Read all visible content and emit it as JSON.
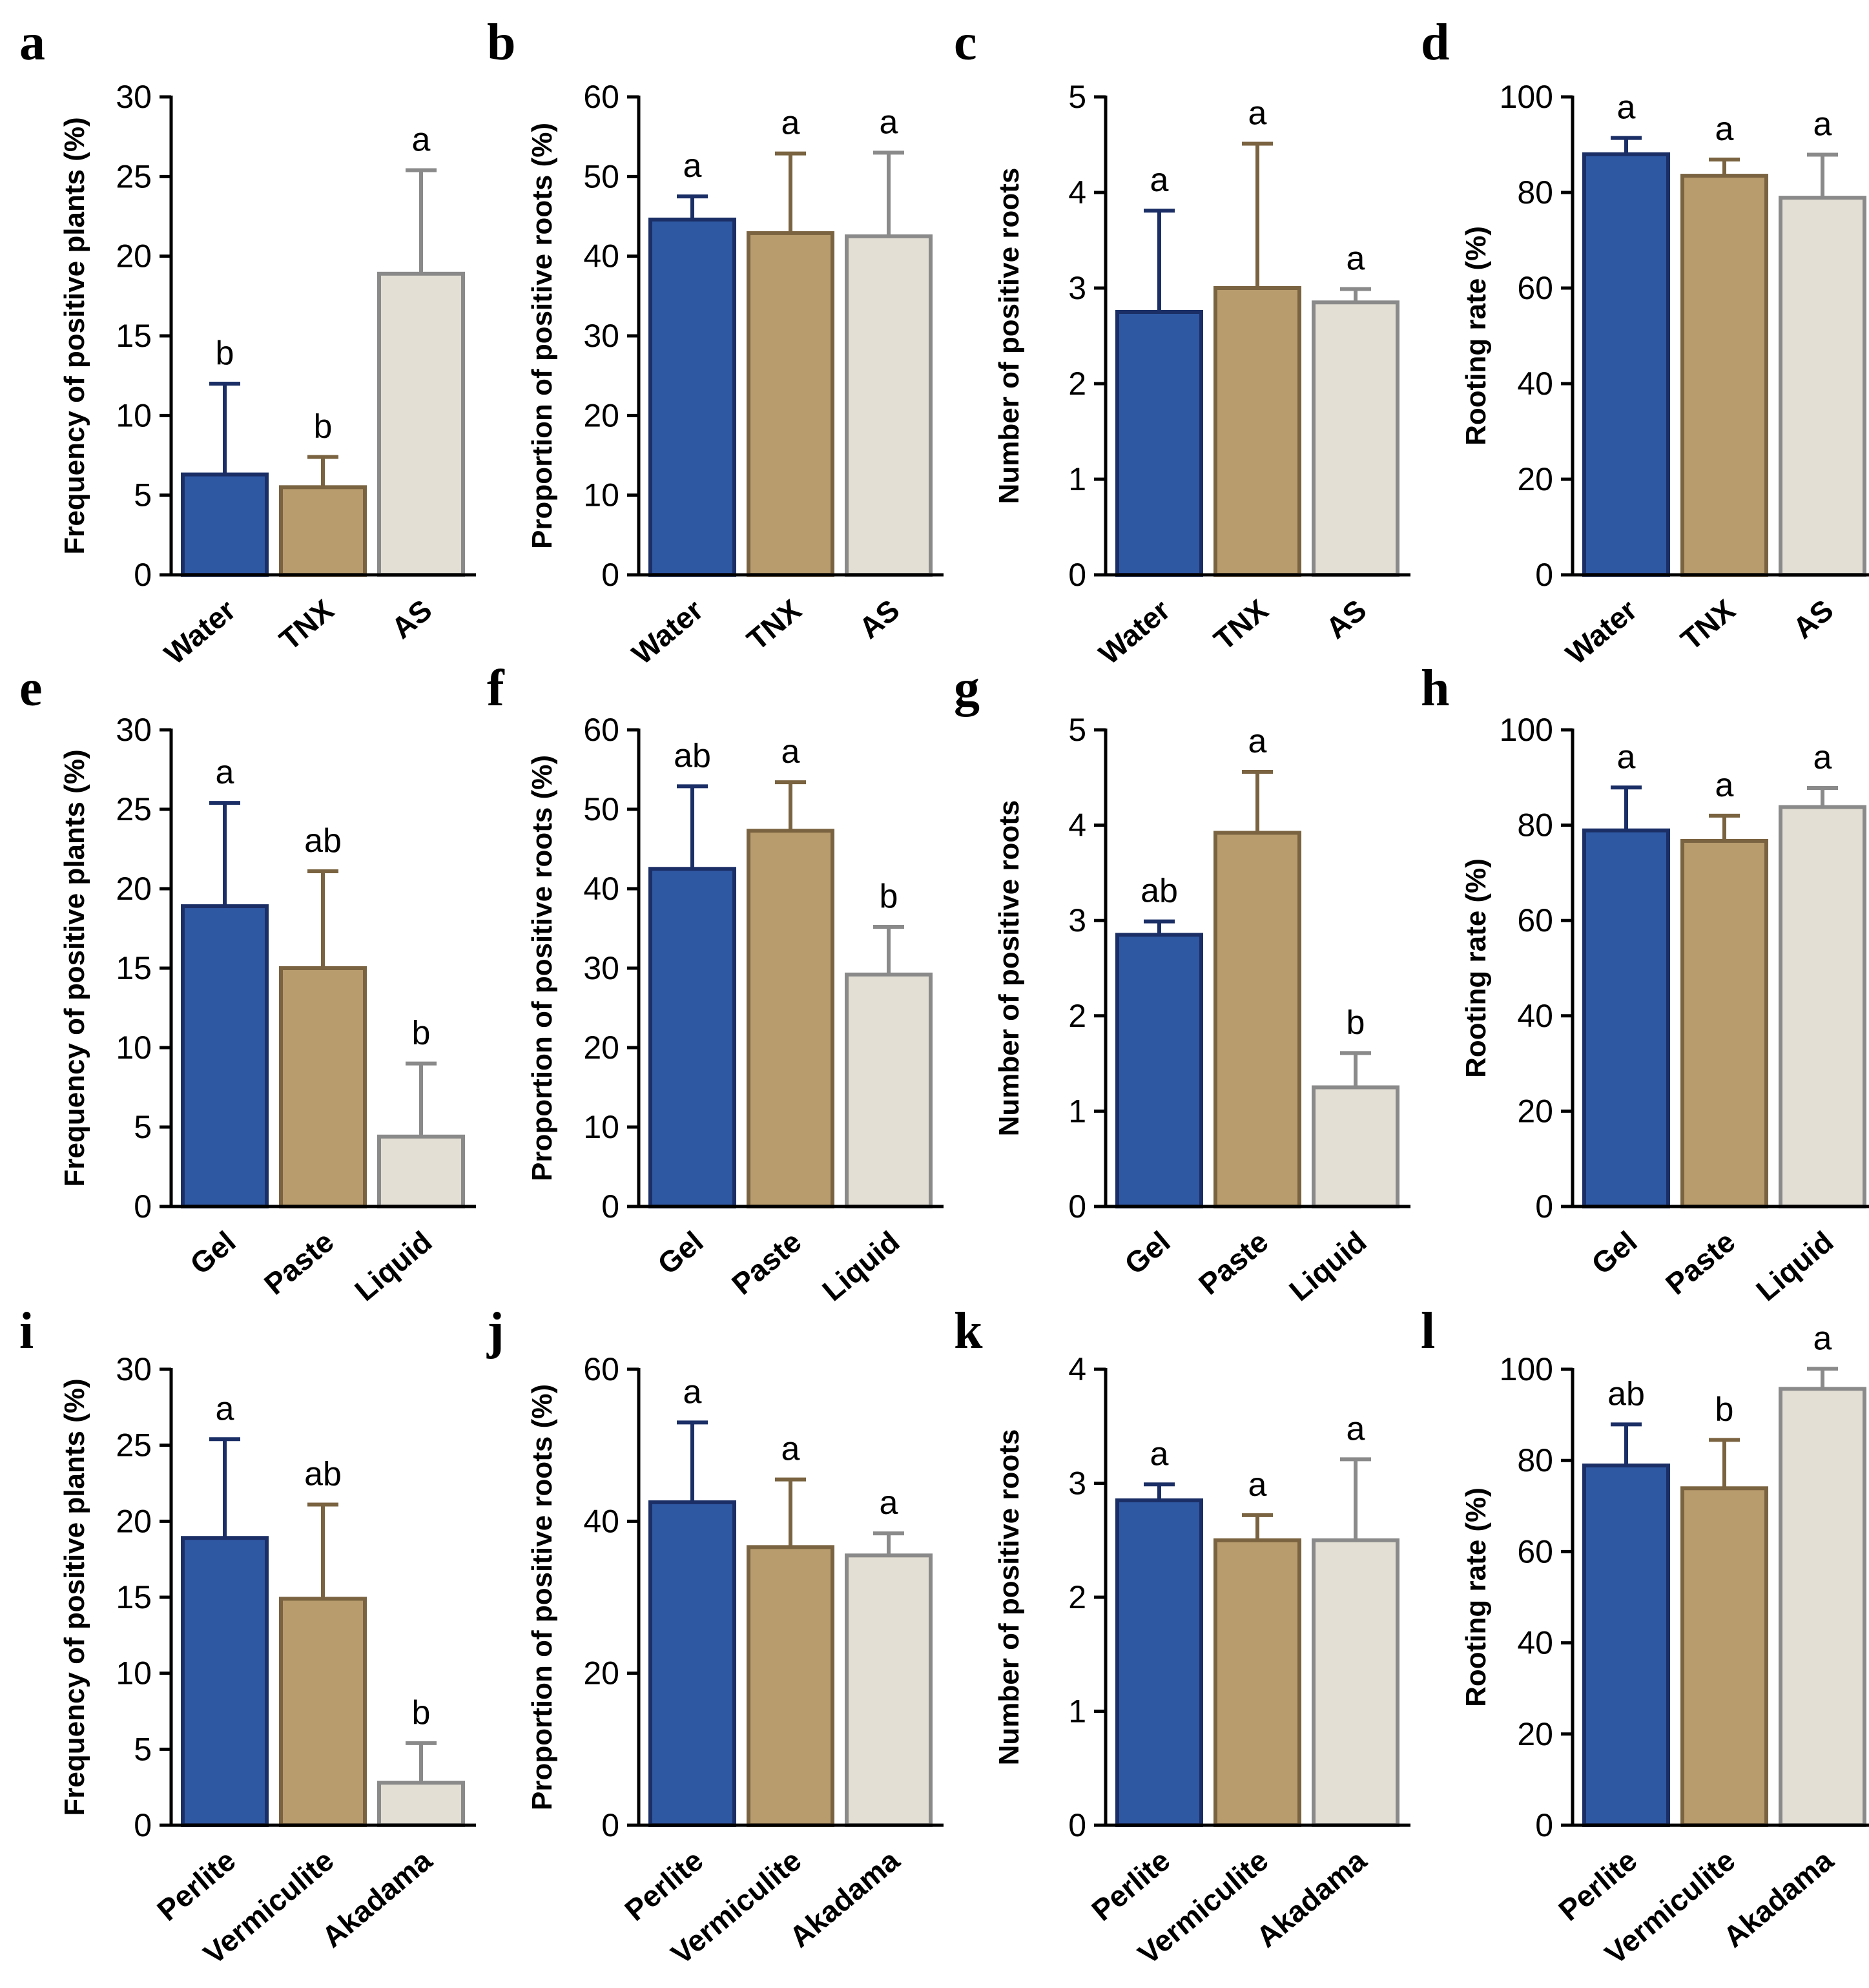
{
  "colors": {
    "blue_fill": "#2f58a3",
    "blue_edge": "#1b2f66",
    "tan_fill": "#b89c6e",
    "tan_edge": "#7a6340",
    "light_fill": "#e3dfd4",
    "light_edge": "#8a8a8a"
  },
  "chart_data": [
    {
      "panel": "a",
      "type": "bar",
      "ylabel": "Frequency of positive plants (%)",
      "ylim": [
        0,
        30
      ],
      "yticks": [
        0,
        5,
        10,
        15,
        20,
        25,
        30
      ],
      "categories": [
        "Water",
        "TNX",
        "AS"
      ],
      "values": [
        6.3,
        5.5,
        18.9
      ],
      "errors": [
        5.7,
        1.9,
        6.5
      ],
      "letters": [
        "b",
        "b",
        "a"
      ]
    },
    {
      "panel": "b",
      "type": "bar",
      "ylabel": "Proportion of positive roots (%)",
      "ylim": [
        0,
        60
      ],
      "yticks": [
        0,
        10,
        20,
        30,
        40,
        50,
        60
      ],
      "categories": [
        "Water",
        "TNX",
        "AS"
      ],
      "values": [
        44.6,
        42.9,
        42.5
      ],
      "errors": [
        2.9,
        10,
        10.5
      ],
      "letters": [
        "a",
        "a",
        "a"
      ]
    },
    {
      "panel": "c",
      "type": "bar",
      "ylabel": "Number of positive roots",
      "ylim": [
        0,
        5
      ],
      "yticks": [
        0,
        1,
        2,
        3,
        4,
        5
      ],
      "categories": [
        "Water",
        "TNX",
        "AS"
      ],
      "values": [
        2.75,
        3.0,
        2.85
      ],
      "errors": [
        1.06,
        1.51,
        0.14
      ],
      "letters": [
        "a",
        "a",
        "a"
      ]
    },
    {
      "panel": "d",
      "type": "bar",
      "ylabel": "Rooting rate (%)",
      "ylim": [
        0,
        100
      ],
      "yticks": [
        0,
        20,
        40,
        60,
        80,
        100
      ],
      "categories": [
        "Water",
        "TNX",
        "AS"
      ],
      "values": [
        88,
        83.5,
        78.9
      ],
      "errors": [
        3.4,
        3.4,
        9
      ],
      "letters": [
        "a",
        "a",
        "a"
      ]
    },
    {
      "panel": "e",
      "type": "bar",
      "ylabel": "Frequency of positive plants (%)",
      "ylim": [
        0,
        30
      ],
      "yticks": [
        0,
        5,
        10,
        15,
        20,
        25,
        30
      ],
      "categories": [
        "Gel",
        "Paste",
        "Liquid"
      ],
      "values": [
        18.9,
        15.0,
        4.4
      ],
      "errors": [
        6.5,
        6.1,
        4.6
      ],
      "letters": [
        "a",
        "ab",
        "b"
      ]
    },
    {
      "panel": "f",
      "type": "bar",
      "ylabel": "Proportion of positive roots (%)",
      "ylim": [
        0,
        60
      ],
      "yticks": [
        0,
        10,
        20,
        30,
        40,
        50,
        60
      ],
      "categories": [
        "Gel",
        "Paste",
        "Liquid"
      ],
      "values": [
        42.5,
        47.3,
        29.2
      ],
      "errors": [
        10.4,
        6.1,
        6
      ],
      "letters": [
        "ab",
        "a",
        "b"
      ]
    },
    {
      "panel": "g",
      "type": "bar",
      "ylabel": "Number of positive roots",
      "ylim": [
        0,
        5
      ],
      "yticks": [
        0,
        1,
        2,
        3,
        4,
        5
      ],
      "categories": [
        "Gel",
        "Paste",
        "Liquid"
      ],
      "values": [
        2.85,
        3.92,
        1.25
      ],
      "errors": [
        0.14,
        0.64,
        0.36
      ],
      "letters": [
        "ab",
        "a",
        "b"
      ]
    },
    {
      "panel": "h",
      "type": "bar",
      "ylabel": "Rooting rate (%)",
      "ylim": [
        0,
        100
      ],
      "yticks": [
        0,
        20,
        40,
        60,
        80,
        100
      ],
      "categories": [
        "Gel",
        "Paste",
        "Liquid"
      ],
      "values": [
        78.9,
        76.7,
        83.8
      ],
      "errors": [
        9,
        5.3,
        4
      ],
      "letters": [
        "a",
        "a",
        "a"
      ]
    },
    {
      "panel": "i",
      "type": "bar",
      "ylabel": "Frequency of positive plants (%)",
      "ylim": [
        0,
        30
      ],
      "yticks": [
        0,
        5,
        10,
        15,
        20,
        25,
        30
      ],
      "categories": [
        "Perlite",
        "Vermiculite",
        "Akadama"
      ],
      "values": [
        18.9,
        14.9,
        2.8
      ],
      "errors": [
        6.5,
        6.2,
        2.6
      ],
      "letters": [
        "a",
        "ab",
        "b"
      ]
    },
    {
      "panel": "j",
      "type": "bar",
      "ylabel": "Proportion of positive roots (%)",
      "ylim": [
        0,
        60
      ],
      "yticks": [
        0,
        20,
        40,
        60
      ],
      "categories": [
        "Perlite",
        "Vermiculite",
        "Akadama"
      ],
      "values": [
        42.5,
        36.6,
        35.5
      ],
      "errors": [
        10.5,
        8.9,
        2.9
      ],
      "letters": [
        "a",
        "a",
        "a"
      ]
    },
    {
      "panel": "k",
      "type": "bar",
      "ylabel": "Number of positive roots",
      "ylim": [
        0,
        4
      ],
      "yticks": [
        0,
        1,
        2,
        3,
        4
      ],
      "categories": [
        "Perlite",
        "Vermiculite",
        "Akadama"
      ],
      "values": [
        2.85,
        2.5,
        2.5
      ],
      "errors": [
        0.14,
        0.22,
        0.71
      ],
      "letters": [
        "a",
        "a",
        "a"
      ]
    },
    {
      "panel": "l",
      "type": "bar",
      "ylabel": "Rooting rate (%)",
      "ylim": [
        0,
        100
      ],
      "yticks": [
        0,
        20,
        40,
        60,
        80,
        100
      ],
      "categories": [
        "Perlite",
        "Vermiculite",
        "Akadama"
      ],
      "values": [
        78.9,
        73.9,
        95.7
      ],
      "errors": [
        9,
        10.6,
        4.4
      ],
      "letters": [
        "ab",
        "b",
        "a"
      ]
    }
  ]
}
